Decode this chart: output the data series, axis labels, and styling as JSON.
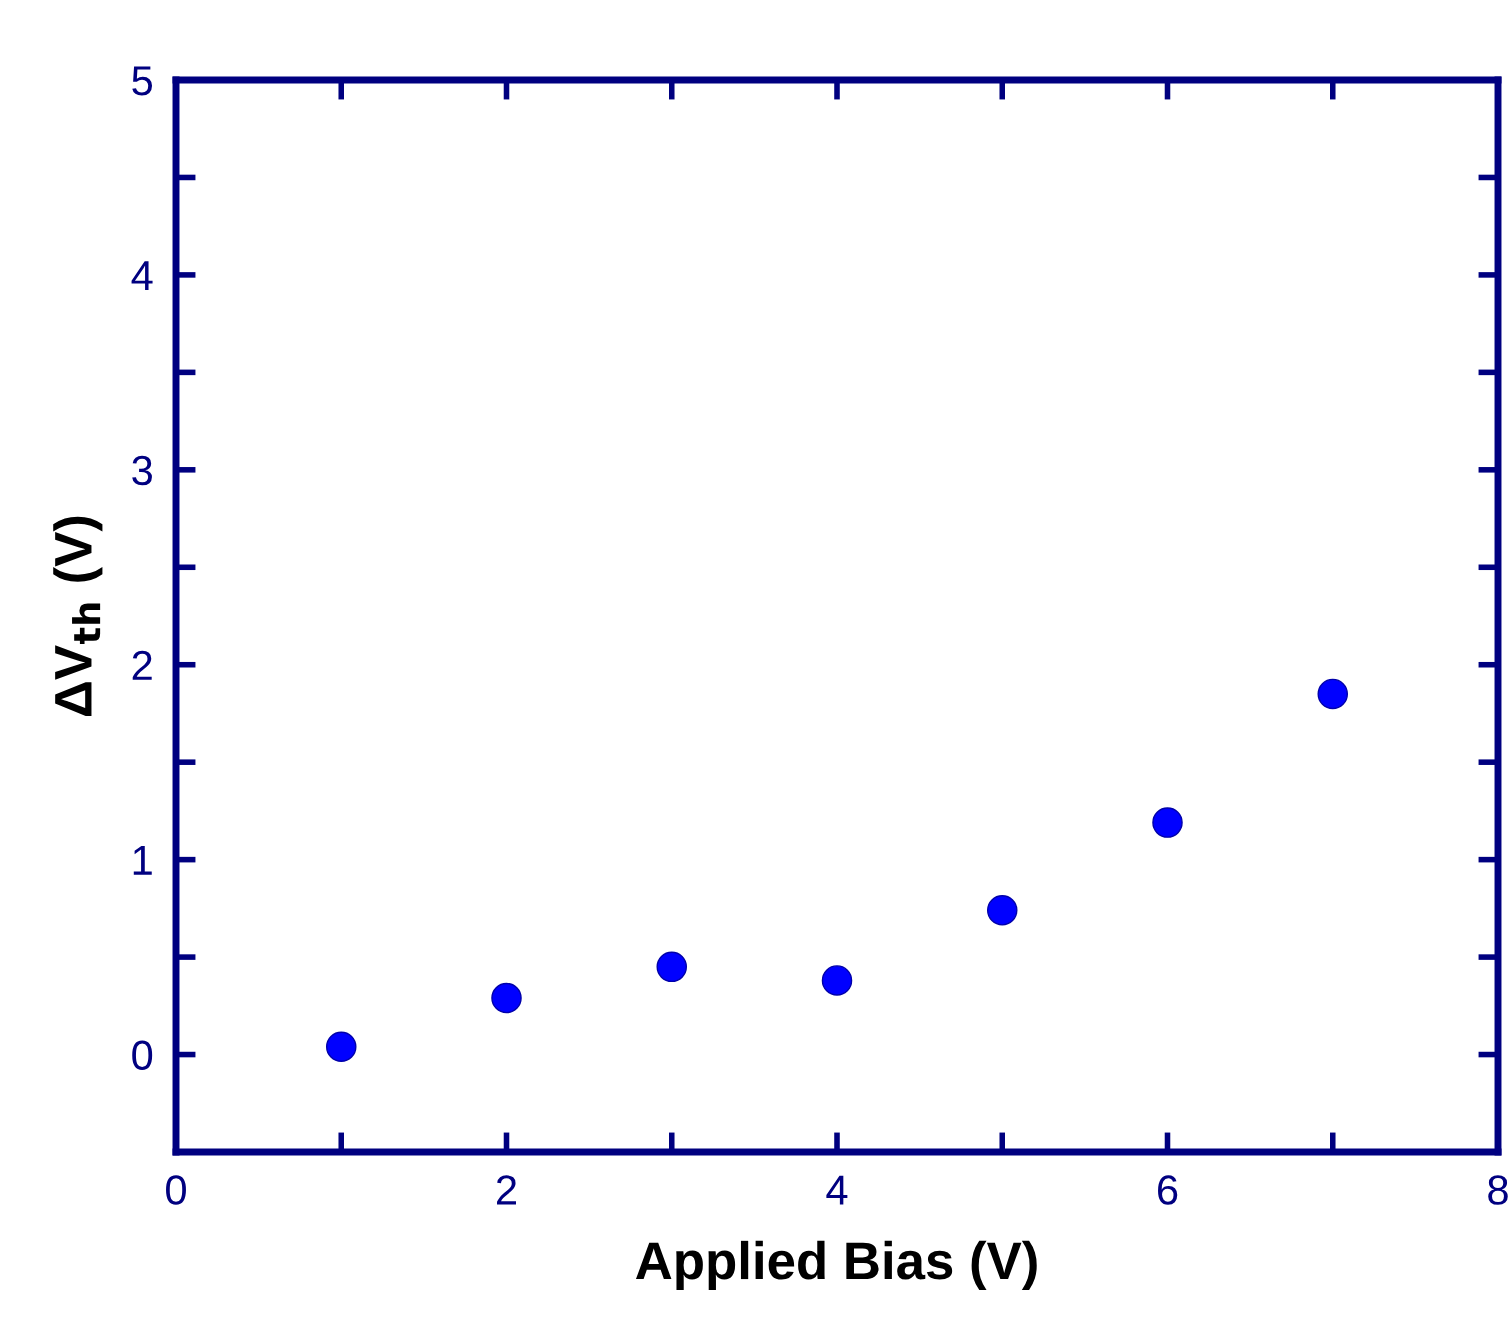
{
  "chart_data": {
    "type": "scatter",
    "xlabel": "Applied Bias (V)",
    "ylabel": "ΔV$_{th}$ (V)",
    "x": [
      1,
      2,
      3,
      4,
      5,
      6,
      7
    ],
    "series": [
      {
        "color": "#0000ff",
        "values": [
          0.04,
          0.29,
          0.45,
          0.38,
          0.74,
          1.19,
          1.85
        ]
      }
    ],
    "xlim": [
      0,
      8
    ],
    "xticks": [
      0,
      {
        "value": 1,
        "label": null
      },
      2,
      {
        "value": 3,
        "label": null
      },
      4,
      {
        "value": 5,
        "label": null
      },
      6,
      {
        "value": 7,
        "label": null
      },
      8
    ],
    "ylim": [
      -0.5,
      5
    ],
    "yticks": [
      {
        "value": -0.5,
        "label": null
      },
      0,
      {
        "value": 0.5,
        "label": null
      },
      1,
      {
        "value": 1.5,
        "label": null
      },
      2,
      {
        "value": 2.5,
        "label": null
      },
      3,
      {
        "value": 3.5,
        "label": null
      },
      4,
      {
        "value": 4.5,
        "label": null
      },
      5
    ],
    "marker": "circle"
  }
}
